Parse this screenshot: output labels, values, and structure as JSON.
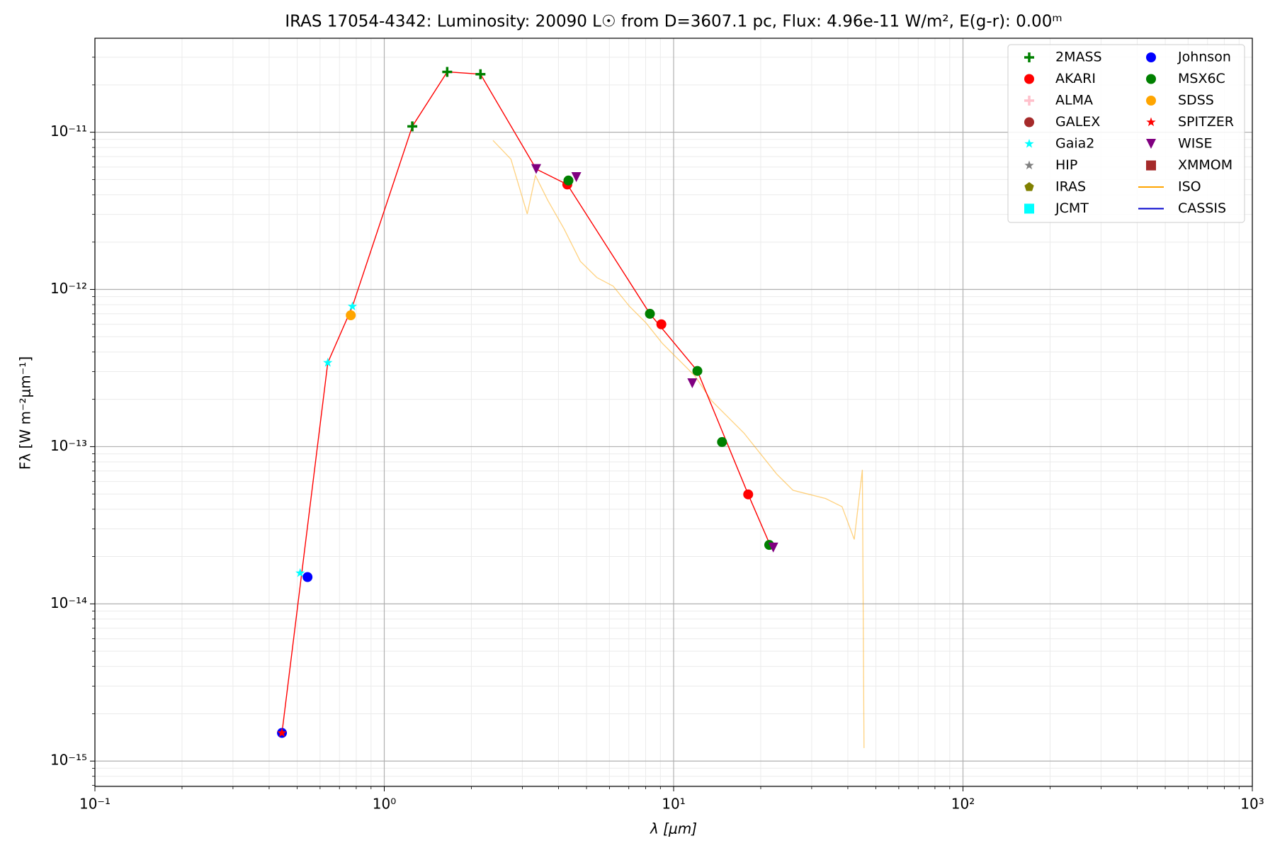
{
  "chart_data": {
    "type": "scatter",
    "title": "IRAS 17054-4342:  Luminosity: 20090 L☉ from D=3607.1 pc, Flux: 4.96e-11 W/m², E(g-r): 0.00ᵐ",
    "x_label": "λ [μm]",
    "y_label": "Fλ [W m⁻²μm⁻¹]",
    "xscale": "log",
    "yscale": "log",
    "xlim": [
      0.1,
      1000
    ],
    "ylim": [
      6.9e-16,
      3.96e-11
    ],
    "xticks": [
      {
        "value": 0.1,
        "label": "10⁻¹"
      },
      {
        "value": 1,
        "label": "10⁰"
      },
      {
        "value": 10,
        "label": "10¹"
      },
      {
        "value": 100,
        "label": "10²"
      },
      {
        "value": 1000,
        "label": "10³"
      }
    ],
    "yticks": [
      {
        "value": 1e-15,
        "label": "10⁻¹⁵"
      },
      {
        "value": 1e-14,
        "label": "10⁻¹⁴"
      },
      {
        "value": 1e-13,
        "label": "10⁻¹³"
      },
      {
        "value": 1e-12,
        "label": "10⁻¹²"
      },
      {
        "value": 1e-11,
        "label": "10⁻¹¹"
      }
    ],
    "xminor": [
      0.2,
      0.3,
      0.4,
      0.5,
      0.6,
      0.7,
      0.8,
      0.9,
      2,
      3,
      4,
      5,
      6,
      7,
      8,
      9,
      20,
      30,
      40,
      50,
      60,
      70,
      80,
      90,
      200,
      300,
      400,
      500,
      600,
      700,
      800,
      900
    ],
    "yminor": [
      7e-16,
      8e-16,
      9e-16,
      2e-15,
      3e-15,
      4e-15,
      5e-15,
      6e-15,
      7e-15,
      8e-15,
      9e-15,
      2e-14,
      3e-14,
      4e-14,
      5e-14,
      6e-14,
      7e-14,
      8e-14,
      9e-14,
      2e-13,
      3e-13,
      4e-13,
      5e-13,
      6e-13,
      7e-13,
      8e-13,
      9e-13,
      2e-12,
      3e-12,
      4e-12,
      5e-12,
      6e-12,
      7e-12,
      8e-12,
      9e-12,
      2e-11,
      3e-11
    ],
    "grid": true,
    "legend": "upper right",
    "model": {
      "color": "#ff0000",
      "x": [
        0.443,
        0.638,
        0.776,
        1.25,
        1.65,
        2.15,
        3.35,
        4.29,
        8.28,
        12.08,
        18.1,
        21.5
      ],
      "values": [
        1.51e-15,
        3.42e-13,
        7.8e-13,
        1.09e-11,
        2.42e-11,
        2.34e-11,
        5.83e-12,
        4.65e-12,
        7e-13,
        3.03e-13,
        4.97e-14,
        2.39e-14
      ]
    },
    "series": [
      {
        "name": "2MASS",
        "color": "#008000",
        "marker": "plus",
        "x": [
          1.25,
          1.65,
          2.15
        ],
        "values": [
          1.09e-11,
          2.42e-11,
          2.34e-11
        ]
      },
      {
        "name": "AKARI",
        "color": "#ff0000",
        "marker": "circle",
        "x": [
          4.29,
          9.07,
          18.1
        ],
        "values": [
          4.65e-12,
          6e-13,
          4.97e-14
        ]
      },
      {
        "name": "ALMA",
        "color": "#ffc0cb",
        "marker": "plus",
        "x": [],
        "values": []
      },
      {
        "name": "GALEX",
        "color": "#a52a2a",
        "marker": "circle",
        "x": [],
        "values": []
      },
      {
        "name": "Gaia2",
        "color": "#00ffff",
        "marker": "star",
        "x": [
          0.512,
          0.638,
          0.776
        ],
        "values": [
          1.57e-14,
          3.42e-13,
          7.8e-13
        ]
      },
      {
        "name": "HIP",
        "color": "#808080",
        "marker": "star",
        "x": [],
        "values": []
      },
      {
        "name": "IRAS",
        "color": "#808000",
        "marker": "pentagon",
        "x": [],
        "values": []
      },
      {
        "name": "JCMT",
        "color": "#00ffff",
        "marker": "square",
        "x": [],
        "values": []
      },
      {
        "name": "Johnson",
        "color": "#0000ff",
        "marker": "circle",
        "x": [
          0.443,
          0.543
        ],
        "values": [
          1.51e-15,
          1.48e-14
        ]
      },
      {
        "name": "MSX6C",
        "color": "#008000",
        "marker": "circle",
        "x": [
          4.33,
          8.28,
          12.08,
          14.7,
          21.4
        ],
        "values": [
          4.93e-12,
          7e-13,
          3.03e-13,
          1.07e-13,
          2.37e-14
        ]
      },
      {
        "name": "SDSS",
        "color": "#ffa500",
        "marker": "circle",
        "x": [
          0.766
        ],
        "values": [
          6.85e-13
        ]
      },
      {
        "name": "SPITZER",
        "color": "#ff0000",
        "marker": "star",
        "x": [
          0.443
        ],
        "values": [
          1.51e-15
        ]
      },
      {
        "name": "WISE",
        "color": "#800080",
        "marker": "triangle-down",
        "x": [
          3.35,
          4.61,
          11.6,
          22.1
        ],
        "values": [
          5.83e-12,
          5.18e-12,
          2.53e-13,
          2.28e-14
        ]
      },
      {
        "name": "XMMOM",
        "color": "#a52a2a",
        "marker": "square",
        "x": [],
        "values": []
      },
      {
        "name": "ISO",
        "color": "#ffa500",
        "marker": "line",
        "x": [
          2.375,
          2.74,
          3.12,
          3.33,
          3.67,
          4.18,
          4.76,
          5.43,
          6.18,
          7.04,
          8.02,
          9.13,
          10.4,
          11.84,
          13.49,
          15.36,
          17.5,
          19.93,
          22.7,
          25.85,
          29.4,
          33.5,
          38.2,
          42.1,
          44.9,
          45.5
        ],
        "values": [
          8.87e-12,
          6.74e-12,
          3.02e-12,
          5.3e-12,
          3.7e-12,
          2.43e-12,
          1.51e-12,
          1.19e-12,
          1.05e-12,
          7.8e-13,
          6.14e-13,
          4.55e-13,
          3.58e-13,
          2.82e-13,
          1.97e-13,
          1.55e-13,
          1.22e-13,
          9.04e-14,
          6.7e-14,
          5.28e-14,
          4.97e-14,
          4.68e-14,
          4.15e-14,
          2.57e-14,
          7.12e-14,
          1.21e-15
        ]
      },
      {
        "name": "CASSIS",
        "color": "#0000cd",
        "marker": "line",
        "x": [],
        "values": []
      }
    ]
  }
}
